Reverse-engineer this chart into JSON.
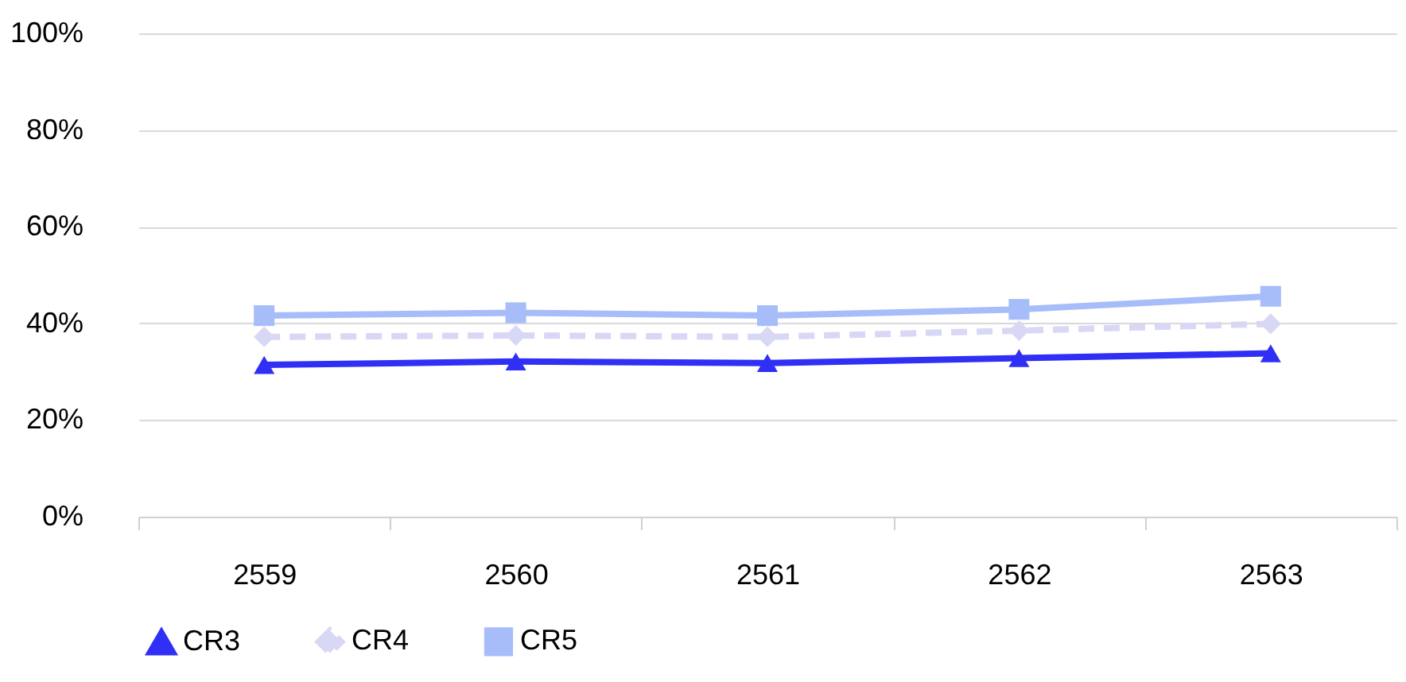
{
  "chart_data": {
    "type": "line",
    "categories": [
      "2559",
      "2560",
      "2561",
      "2562",
      "2563"
    ],
    "series": [
      {
        "name": "CR3",
        "color": "#2f2ff5",
        "values": [
          31.4,
          32.1,
          31.8,
          32.8,
          33.8
        ],
        "marker": "triangle",
        "line_style": "solid"
      },
      {
        "name": "CR4",
        "color": "#d8d8f6",
        "values": [
          37.2,
          37.5,
          37.2,
          38.5,
          39.9
        ],
        "marker": "diamond",
        "line_style": "dashed"
      },
      {
        "name": "CR5",
        "color": "#a7bdfa",
        "values": [
          41.6,
          42.2,
          41.6,
          42.9,
          45.6
        ],
        "marker": "square",
        "line_style": "solid"
      }
    ],
    "ylim": [
      0,
      100
    ],
    "yticks": [
      {
        "value": 0,
        "label": "0%"
      },
      {
        "value": 20,
        "label": "20%"
      },
      {
        "value": 40,
        "label": "40%"
      },
      {
        "value": 60,
        "label": "60%"
      },
      {
        "value": 80,
        "label": "80%"
      },
      {
        "value": 100,
        "label": "100%"
      }
    ],
    "grid": "y",
    "legend": "bottom"
  }
}
